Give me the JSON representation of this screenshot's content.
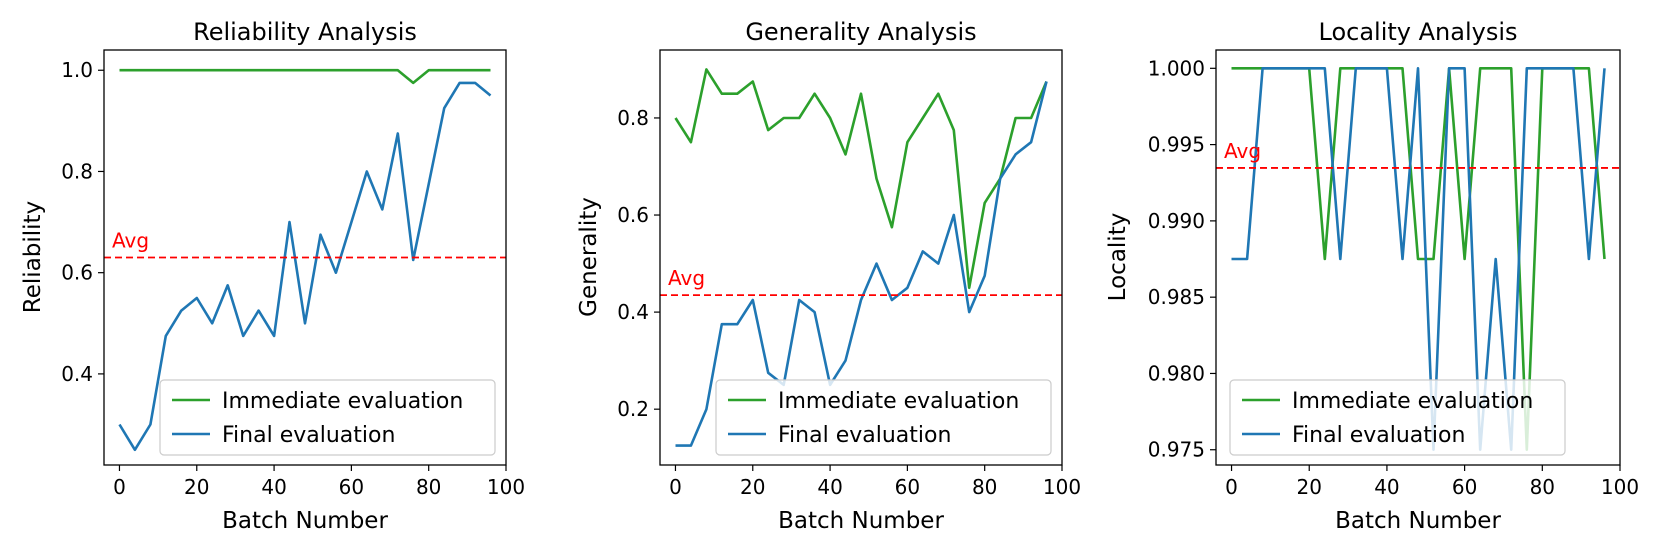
{
  "chart_data": [
    {
      "type": "line",
      "title": "Reliability Analysis",
      "xlabel": "Batch Number",
      "ylabel": "Reliability",
      "xlim": [
        -4,
        100
      ],
      "ylim": [
        0.22,
        1.04
      ],
      "xticks": [
        0,
        20,
        40,
        60,
        80,
        100
      ],
      "yticks": [
        0.4,
        0.6,
        0.8,
        1.0
      ],
      "ytick_labels": [
        "0.4",
        "0.6",
        "0.8",
        "1.0"
      ],
      "x": [
        0,
        4,
        8,
        12,
        16,
        20,
        24,
        28,
        32,
        36,
        40,
        44,
        48,
        52,
        56,
        60,
        64,
        68,
        72,
        76,
        80,
        84,
        88,
        92,
        96
      ],
      "series": [
        {
          "name": "Immediate evaluation",
          "color": "#2ca02c",
          "values": [
            1.0,
            1.0,
            1.0,
            1.0,
            1.0,
            1.0,
            1.0,
            1.0,
            1.0,
            1.0,
            1.0,
            1.0,
            1.0,
            1.0,
            1.0,
            1.0,
            1.0,
            1.0,
            1.0,
            0.975,
            1.0,
            1.0,
            1.0,
            1.0,
            1.0
          ]
        },
        {
          "name": "Final evaluation",
          "color": "#1f77b4",
          "values": [
            0.3,
            0.25,
            0.3,
            0.475,
            0.525,
            0.55,
            0.5,
            0.575,
            0.475,
            0.525,
            0.475,
            0.7,
            0.5,
            0.675,
            0.6,
            0.7,
            0.8,
            0.725,
            0.875,
            0.625,
            0.775,
            0.925,
            0.975,
            0.975,
            0.95
          ]
        }
      ],
      "avg": {
        "label": "Avg",
        "value": 0.63,
        "color": "#ff0000"
      },
      "legend_position": "lower-right"
    },
    {
      "type": "line",
      "title": "Generality Analysis",
      "xlabel": "Batch Number",
      "ylabel": "Generality",
      "xlim": [
        -4,
        100
      ],
      "ylim": [
        0.085,
        0.94
      ],
      "xticks": [
        0,
        20,
        40,
        60,
        80,
        100
      ],
      "yticks": [
        0.2,
        0.4,
        0.6,
        0.8
      ],
      "ytick_labels": [
        "0.2",
        "0.4",
        "0.6",
        "0.8"
      ],
      "x": [
        0,
        4,
        8,
        12,
        16,
        20,
        24,
        28,
        32,
        36,
        40,
        44,
        48,
        52,
        56,
        60,
        64,
        68,
        72,
        76,
        80,
        84,
        88,
        92,
        96
      ],
      "series": [
        {
          "name": "Immediate evaluation",
          "color": "#2ca02c",
          "values": [
            0.8,
            0.75,
            0.9,
            0.85,
            0.85,
            0.875,
            0.775,
            0.8,
            0.8,
            0.85,
            0.8,
            0.725,
            0.85,
            0.675,
            0.575,
            0.75,
            0.8,
            0.85,
            0.775,
            0.45,
            0.625,
            0.675,
            0.8,
            0.8,
            0.875
          ]
        },
        {
          "name": "Final evaluation",
          "color": "#1f77b4",
          "values": [
            0.125,
            0.125,
            0.2,
            0.375,
            0.375,
            0.425,
            0.275,
            0.25,
            0.425,
            0.4,
            0.25,
            0.3,
            0.425,
            0.5,
            0.425,
            0.45,
            0.525,
            0.5,
            0.6,
            0.4,
            0.475,
            0.675,
            0.725,
            0.75,
            0.875
          ]
        }
      ],
      "avg": {
        "label": "Avg",
        "value": 0.435,
        "color": "#ff0000"
      },
      "legend_position": "lower-right"
    },
    {
      "type": "line",
      "title": "Locality Analysis",
      "xlabel": "Batch Number",
      "ylabel": "Locality",
      "xlim": [
        -4,
        100
      ],
      "ylim": [
        0.974,
        1.0012
      ],
      "xticks": [
        0,
        20,
        40,
        60,
        80,
        100
      ],
      "yticks": [
        0.975,
        0.98,
        0.985,
        0.99,
        0.995,
        1.0
      ],
      "ytick_labels": [
        "0.975",
        "0.980",
        "0.985",
        "0.990",
        "0.995",
        "1.000"
      ],
      "x": [
        0,
        4,
        8,
        12,
        16,
        20,
        24,
        28,
        32,
        36,
        40,
        44,
        48,
        52,
        56,
        60,
        64,
        68,
        72,
        76,
        80,
        84,
        88,
        92,
        96
      ],
      "series": [
        {
          "name": "Immediate evaluation",
          "color": "#2ca02c",
          "values": [
            1.0,
            1.0,
            1.0,
            1.0,
            1.0,
            1.0,
            0.9875,
            1.0,
            1.0,
            1.0,
            1.0,
            1.0,
            0.9875,
            0.9875,
            1.0,
            0.9875,
            1.0,
            1.0,
            1.0,
            0.975,
            1.0,
            1.0,
            1.0,
            1.0,
            0.9875
          ]
        },
        {
          "name": "Final evaluation",
          "color": "#1f77b4",
          "values": [
            0.9875,
            0.9875,
            1.0,
            1.0,
            1.0,
            1.0,
            1.0,
            0.9875,
            1.0,
            1.0,
            1.0,
            0.9875,
            1.0,
            0.975,
            1.0,
            1.0,
            0.975,
            0.9875,
            0.975,
            1.0,
            1.0,
            1.0,
            1.0,
            0.9875,
            1.0
          ]
        }
      ],
      "avg": {
        "label": "Avg",
        "value": 0.99347,
        "color": "#ff0000"
      },
      "legend_position": "lower-left"
    }
  ]
}
